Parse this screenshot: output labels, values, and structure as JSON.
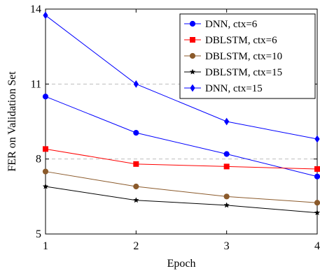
{
  "chart_data": {
    "type": "line",
    "xlabel": "Epoch",
    "ylabel": "FER on Validation Set",
    "x": [
      1,
      2,
      3,
      4
    ],
    "xlim": [
      1,
      4
    ],
    "ylim": [
      5,
      14
    ],
    "xticks": [
      "1",
      "2",
      "3",
      "4"
    ],
    "yticks": [
      5,
      8,
      11,
      14
    ],
    "ytick_labels": [
      "5",
      "8",
      "11",
      "14"
    ],
    "grid": "horizontal dashed at y=8 and y=11",
    "legend_position": "top-right",
    "series": [
      {
        "name": "DNN, ctx=6",
        "values": [
          10.5,
          9.05,
          8.2,
          7.3
        ],
        "color": "#0000ff",
        "marker": "circle"
      },
      {
        "name": "DBLSTM, ctx=6",
        "values": [
          8.4,
          7.8,
          7.7,
          7.6
        ],
        "color": "#ff0000",
        "marker": "square"
      },
      {
        "name": "DBLSTM, ctx=10",
        "values": [
          7.5,
          6.9,
          6.5,
          6.25
        ],
        "color": "#8b5a2b",
        "marker": "circle"
      },
      {
        "name": "DBLSTM, ctx=15",
        "values": [
          6.9,
          6.35,
          6.15,
          5.85
        ],
        "color": "#000000",
        "marker": "star"
      },
      {
        "name": "DNN, ctx=15",
        "values": [
          13.75,
          11.0,
          9.5,
          8.8
        ],
        "color": "#0000ff",
        "marker": "diamond"
      }
    ]
  }
}
